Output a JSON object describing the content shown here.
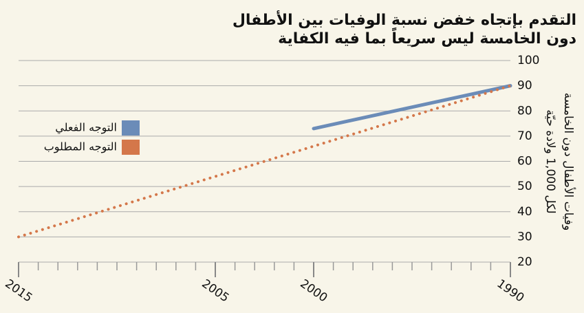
{
  "chart_data": {
    "type": "line",
    "title": [
      "التقدم بإتجاه خفض نسبة الوفيات بين الأطفال",
      "دون الخامسة ليس سريعاً بما فيه الكفاية"
    ],
    "ylabel": [
      "وفيات الأطفال دون الخامسة",
      "لكل 1,000 ولادة حيّة"
    ],
    "xlim": [
      2015,
      1990
    ],
    "xticks": [
      2015,
      2005,
      2000,
      1990
    ],
    "ylim": [
      20,
      100
    ],
    "yticks": [
      20,
      30,
      40,
      50,
      60,
      70,
      80,
      90,
      100
    ],
    "grid": true,
    "legend": "left",
    "series": [
      {
        "name": "التوجه الفعلي",
        "color": "#6b8cb8",
        "style": "solid",
        "x": [
          2000,
          1990
        ],
        "values": [
          73,
          90
        ]
      },
      {
        "name": "التوجه المطلوب",
        "color": "#d4774a",
        "style": "dotted",
        "x": [
          2015,
          1990
        ],
        "values": [
          30,
          90
        ]
      }
    ]
  }
}
